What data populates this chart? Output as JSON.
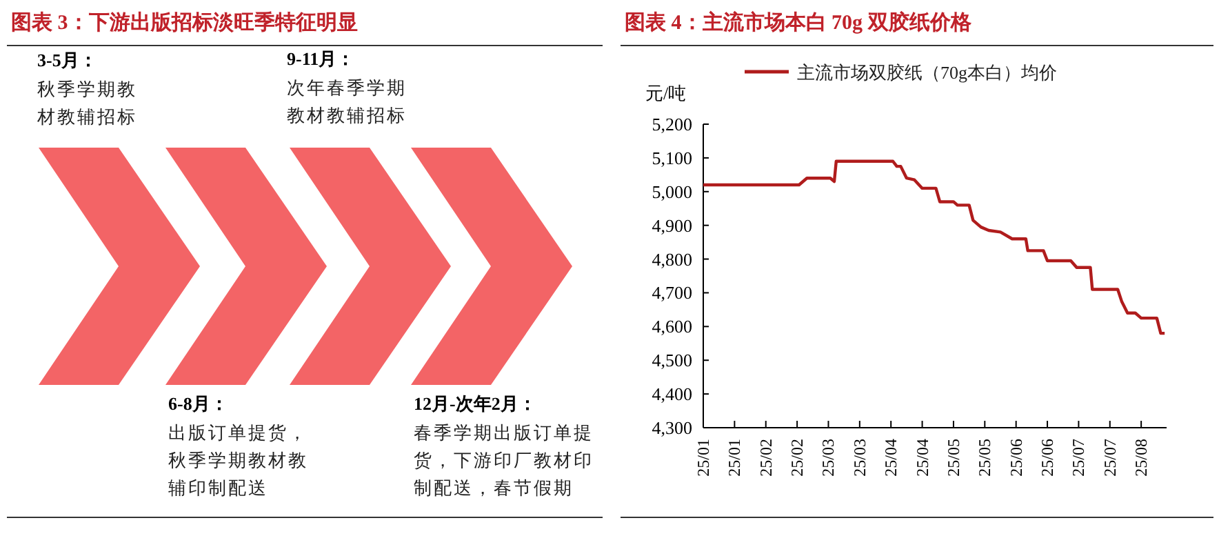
{
  "chart_data": [
    {
      "type": "other",
      "title": "图表 3：下游出版招标淡旺季特征明显",
      "annotations": [
        "3-5月：",
        "秋季学期教材教辅招标",
        "6-8月：",
        "出版订单提货，秋季学期教材教辅印制配送",
        "9-11月：",
        "次年春季学期教材教辅招标",
        "12月-次年2月：",
        "春季学期出版订单提货，下游印厂教材印制配送，春节假期"
      ]
    },
    {
      "type": "line",
      "title": "图表 4：主流市场本白 70g 双胶纸价格",
      "ylabel": "元/吨",
      "legend": "top",
      "x": [
        "--01-01",
        "--02-19",
        "--02-23",
        "--03-07",
        "--03-09",
        "--03-10",
        "--04-08",
        "--04-10",
        "--04-12",
        "--04-15",
        "--04-19",
        "--04-23",
        "--04-30",
        "--05-02",
        "--05-09",
        "--05-11",
        "--05-17",
        "--05-19",
        "--05-23",
        "--05-27",
        "--06-02",
        "--06-08",
        "--06-15",
        "--06-16",
        "--06-24",
        "--06-26",
        "--07-08",
        "--07-11",
        "--07-18",
        "--07-19",
        "--08-01",
        "--08-03",
        "--08-06",
        "--08-10",
        "--08-13",
        "--08-21",
        "--08-23",
        "--08-25"
      ],
      "series": [
        {
          "name": "主流市场双胶纸（70g本白）均价",
          "color": "#b01c1c",
          "values": [
            5020,
            5020,
            5040,
            5040,
            5030,
            5090,
            5090,
            5075,
            5075,
            5040,
            5035,
            5010,
            5010,
            4970,
            4970,
            4960,
            4960,
            4915,
            4895,
            4885,
            4880,
            4860,
            4860,
            4825,
            4825,
            4795,
            4795,
            4775,
            4775,
            4710,
            4710,
            4675,
            4640,
            4640,
            4625,
            4625,
            4580,
            4580
          ]
        }
      ],
      "xlim": [
        "--01-01",
        "--08-26"
      ],
      "xticks": [
        {
          "value": "--01-01",
          "label": "25/01"
        },
        {
          "value": "--01-17",
          "label": "25/01"
        },
        {
          "value": "--02-02",
          "label": "25/02"
        },
        {
          "value": "--02-18",
          "label": "25/02"
        },
        {
          "value": "--03-06",
          "label": "25/03"
        },
        {
          "value": "--03-22",
          "label": "25/03"
        },
        {
          "value": "--04-07",
          "label": "25/04"
        },
        {
          "value": "--04-23",
          "label": "25/04"
        },
        {
          "value": "--05-09",
          "label": "25/05"
        },
        {
          "value": "--05-25",
          "label": "25/05"
        },
        {
          "value": "--06-10",
          "label": "25/06"
        },
        {
          "value": "--06-26",
          "label": "25/06"
        },
        {
          "value": "--07-12",
          "label": "25/07"
        },
        {
          "value": "--07-28",
          "label": "25/07"
        },
        {
          "value": "--08-13",
          "label": "25/08"
        }
      ],
      "ylim": [
        4300,
        5200
      ],
      "yticks": [
        {
          "value": 4300,
          "label": "4,300"
        },
        {
          "value": 4400,
          "label": "4,400"
        },
        {
          "value": 4500,
          "label": "4,500"
        },
        {
          "value": 4600,
          "label": "4,600"
        },
        {
          "value": 4700,
          "label": "4,700"
        },
        {
          "value": 4800,
          "label": "4,800"
        },
        {
          "value": 4900,
          "label": "4,900"
        },
        {
          "value": 5000,
          "label": "5,000"
        },
        {
          "value": 5100,
          "label": "5,100"
        },
        {
          "value": 5200,
          "label": "5,200"
        }
      ]
    }
  ]
}
